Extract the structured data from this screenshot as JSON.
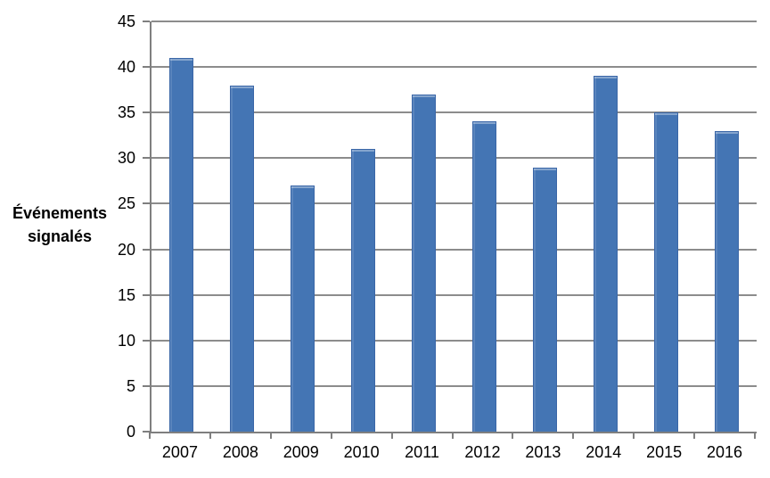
{
  "chart_data": {
    "type": "bar",
    "title": "",
    "xlabel": "",
    "ylabel": "Événements signalés",
    "categories": [
      "2007",
      "2008",
      "2009",
      "2010",
      "2011",
      "2012",
      "2013",
      "2014",
      "2015",
      "2016"
    ],
    "values": [
      41,
      38,
      27,
      31,
      37,
      34,
      29,
      39,
      35,
      33
    ],
    "ylim": [
      0,
      45
    ],
    "ytick_step": 5,
    "yticks": [
      0,
      5,
      10,
      15,
      20,
      25,
      30,
      35,
      40,
      45
    ],
    "grid": true,
    "legend_position": "none",
    "colors": {
      "bar_fill": "#4475B4",
      "bar_border": "#3A66A7",
      "gridline": "#8C8C8C",
      "axis": "#7F7F7F",
      "text": "#000000"
    }
  }
}
